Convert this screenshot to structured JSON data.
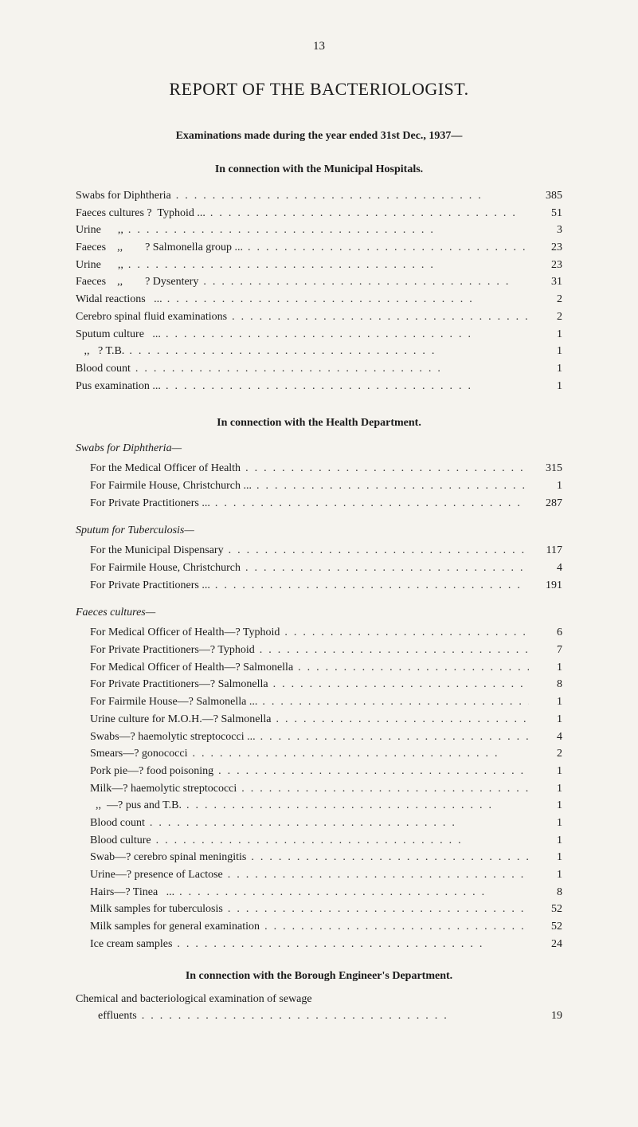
{
  "page_number": "13",
  "title": "REPORT OF THE BACTERIOLOGIST.",
  "exam_heading": "Examinations made during the year ended 31st Dec., 1937—",
  "municipal_heading": "In connection with the Municipal Hospitals.",
  "municipal_rows": [
    {
      "label": "Swabs for Diphtheria",
      "value": "385"
    },
    {
      "label": "Faeces cultures ?  Typhoid ...",
      "value": "51"
    },
    {
      "label": "Urine      ,,",
      "value": "3"
    },
    {
      "label": "Faeces    ,,        ? Salmonella group ...",
      "value": "23"
    },
    {
      "label": "Urine      ,,",
      "value": "23"
    },
    {
      "label": "Faeces    ,,        ? Dysentery",
      "value": "31"
    },
    {
      "label": "Widal reactions   ...",
      "value": "2"
    },
    {
      "label": "Cerebro spinal fluid examinations",
      "value": "2"
    },
    {
      "label": "Sputum culture   ...",
      "value": "1"
    },
    {
      "label": "   ,,   ? T.B.",
      "value": "1"
    },
    {
      "label": "Blood count",
      "value": "1"
    },
    {
      "label": "Pus examination ...",
      "value": "1"
    }
  ],
  "health_heading": "In connection with the Health Department.",
  "swabs_sub": "Swabs for Diphtheria—",
  "swabs_rows": [
    {
      "label": "For the Medical Officer of Health",
      "value": "315"
    },
    {
      "label": "For Fairmile House, Christchurch ...",
      "value": "1"
    },
    {
      "label": "For Private Practitioners ...",
      "value": "287"
    }
  ],
  "sputum_sub": "Sputum for Tuberculosis—",
  "sputum_rows": [
    {
      "label": "For the Municipal Dispensary",
      "value": "117"
    },
    {
      "label": "For Fairmile House, Christchurch",
      "value": "4"
    },
    {
      "label": "For Private Practitioners ...",
      "value": "191"
    }
  ],
  "faeces_sub": "Faeces cultures—",
  "faeces_rows": [
    {
      "label": "For Medical Officer of Health—? Typhoid",
      "value": "6"
    },
    {
      "label": "For Private Practitioners—? Typhoid",
      "value": "7"
    },
    {
      "label": "For Medical Officer of Health—? Salmonella",
      "value": "1"
    },
    {
      "label": "For Private Practitioners—? Salmonella",
      "value": "8"
    },
    {
      "label": "For Fairmile House—? Salmonella ...",
      "value": "1"
    },
    {
      "label": "Urine culture for M.O.H.—? Salmonella",
      "value": "1"
    },
    {
      "label": "Swabs—? haemolytic streptococci ...",
      "value": "4"
    },
    {
      "label": "Smears—? gonococci",
      "value": "2"
    },
    {
      "label": "Pork pie—? food poisoning",
      "value": "1"
    },
    {
      "label": "Milk—? haemolytic streptococci",
      "value": "1"
    },
    {
      "label": "  ,,  —? pus and T.B.",
      "value": "1"
    },
    {
      "label": "Blood count",
      "value": "1"
    },
    {
      "label": "Blood culture",
      "value": "1"
    },
    {
      "label": "Swab—? cerebro spinal meningitis",
      "value": "1"
    },
    {
      "label": "Urine—? presence of Lactose",
      "value": "1"
    },
    {
      "label": "Hairs—? Tinea   ...",
      "value": "8"
    },
    {
      "label": "Milk samples for tuberculosis",
      "value": "52"
    },
    {
      "label": "Milk samples for general examination",
      "value": "52"
    },
    {
      "label": "Ice cream samples",
      "value": "24"
    }
  ],
  "engineer_heading": "In connection with the Borough Engineer's Department.",
  "engineer_line1": "Chemical and bacteriological examination of sewage",
  "engineer_row": {
    "label": "        effluents",
    "value": "19"
  },
  "colors": {
    "background": "#f5f3ee",
    "text": "#1a1a1a"
  },
  "typography": {
    "title_fontsize": 22,
    "body_fontsize": 14,
    "heading_fontsize": 14
  }
}
